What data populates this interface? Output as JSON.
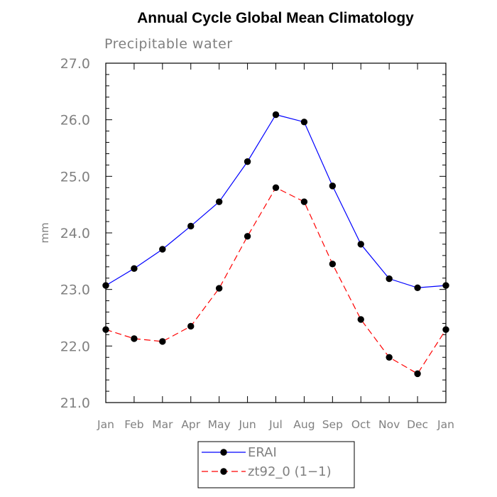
{
  "chart_data": {
    "type": "line",
    "title": "Annual Cycle Global Mean Climatology",
    "subtitle": "Precipitable water",
    "xlabel": "",
    "ylabel": "mm",
    "categories": [
      "Jan",
      "Feb",
      "Mar",
      "Apr",
      "May",
      "Jun",
      "Jul",
      "Aug",
      "Sep",
      "Oct",
      "Nov",
      "Dec",
      "Jan"
    ],
    "ylim": [
      21.0,
      27.0
    ],
    "yticks": [
      "21.0",
      "22.0",
      "23.0",
      "24.0",
      "25.0",
      "26.0",
      "27.0"
    ],
    "grid": false,
    "legend_position": "bottom-center",
    "series": [
      {
        "name": "ERAI",
        "color": "#0000ff",
        "dash": "solid",
        "values": [
          23.07,
          23.37,
          23.71,
          24.12,
          24.55,
          25.26,
          26.09,
          25.96,
          24.83,
          23.8,
          23.19,
          23.03,
          23.07
        ]
      },
      {
        "name": "zt92_0 (1−1)",
        "color": "#ff0000",
        "dash": "dashed",
        "values": [
          22.29,
          22.13,
          22.08,
          22.35,
          23.02,
          23.94,
          24.8,
          24.55,
          23.45,
          22.47,
          21.8,
          21.51,
          22.29
        ]
      }
    ]
  }
}
